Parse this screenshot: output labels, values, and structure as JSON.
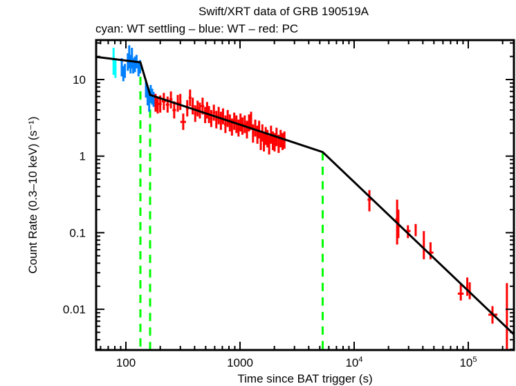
{
  "chart_data": {
    "type": "scatter",
    "title": "Swift/XRT data of GRB 190519A",
    "subtitle": "cyan: WT settling – blue: WT – red: PC",
    "xlabel": "Time since BAT trigger (s)",
    "ylabel": "Count Rate (0.3–10 keV) (s⁻¹)",
    "xscale": "log",
    "yscale": "log",
    "xlim": [
      53,
      260000
    ],
    "ylim": [
      0.0025,
      30
    ],
    "x_ticks": [
      {
        "value": 100,
        "label": "100"
      },
      {
        "value": 1000,
        "label": "1000"
      },
      {
        "value": 10000,
        "label": "10",
        "sup": "4"
      },
      {
        "value": 100000,
        "label": "10",
        "sup": "5"
      }
    ],
    "y_ticks": [
      {
        "value": 10,
        "label": "10"
      },
      {
        "value": 1,
        "label": "1"
      },
      {
        "value": 0.1,
        "label": "0.1"
      },
      {
        "value": 0.01,
        "label": "0.01"
      }
    ],
    "grid": false,
    "colors": {
      "wt_settling": "#00ffff",
      "wt": "#0080ff",
      "pc": "#ff0000",
      "fit": "#000000",
      "breaks": "#00ff00"
    },
    "series": [
      {
        "name": "WT settling",
        "color_key": "wt_settling",
        "points": [
          {
            "t": 78,
            "t_lo": 76,
            "t_hi": 80,
            "rate": 18.0,
            "r_lo": 11.5,
            "r_hi": 26.0
          },
          {
            "t": 81,
            "t_lo": 79,
            "t_hi": 83,
            "rate": 14.0,
            "r_lo": 10.5,
            "r_hi": 19.0
          }
        ]
      },
      {
        "name": "WT",
        "color_key": "wt",
        "points": [
          {
            "t": 92,
            "t_lo": 90,
            "t_hi": 94,
            "rate": 14.5,
            "r_lo": 11.0,
            "r_hi": 19.0
          },
          {
            "t": 95,
            "t_lo": 93,
            "t_hi": 97,
            "rate": 12.0,
            "r_lo": 9.5,
            "r_hi": 15.0
          },
          {
            "t": 98,
            "t_lo": 96,
            "t_hi": 100,
            "rate": 13.0,
            "r_lo": 10.5,
            "r_hi": 16.0
          },
          {
            "t": 104,
            "t_lo": 102,
            "t_hi": 106,
            "rate": 17.0,
            "r_lo": 13.0,
            "r_hi": 22.0
          },
          {
            "t": 107,
            "t_lo": 105,
            "t_hi": 109,
            "rate": 20.0,
            "r_lo": 14.0,
            "r_hi": 28.0
          },
          {
            "t": 110,
            "t_lo": 108,
            "t_hi": 112,
            "rate": 16.0,
            "r_lo": 12.0,
            "r_hi": 21.0
          },
          {
            "t": 113,
            "t_lo": 111,
            "t_hi": 115,
            "rate": 19.0,
            "r_lo": 14.0,
            "r_hi": 26.0
          },
          {
            "t": 116,
            "t_lo": 114,
            "t_hi": 118,
            "rate": 15.0,
            "r_lo": 12.0,
            "r_hi": 19.0
          },
          {
            "t": 120,
            "t_lo": 118,
            "t_hi": 122,
            "rate": 16.0,
            "r_lo": 12.5,
            "r_hi": 20.0
          },
          {
            "t": 124,
            "t_lo": 122,
            "t_hi": 126,
            "rate": 17.5,
            "r_lo": 14.0,
            "r_hi": 21.0
          },
          {
            "t": 129,
            "t_lo": 127,
            "t_hi": 131,
            "rate": 14.0,
            "r_lo": 11.0,
            "r_hi": 17.5
          },
          {
            "t": 133,
            "t_lo": 131,
            "t_hi": 135,
            "rate": 15.0,
            "r_lo": 12.0,
            "r_hi": 18.0
          },
          {
            "t": 150,
            "t_lo": 147,
            "t_hi": 153,
            "rate": 7.5,
            "r_lo": 5.8,
            "r_hi": 9.5
          },
          {
            "t": 155,
            "t_lo": 152,
            "t_hi": 158,
            "rate": 6.0,
            "r_lo": 4.6,
            "r_hi": 7.8
          },
          {
            "t": 160,
            "t_lo": 157,
            "t_hi": 163,
            "rate": 5.0,
            "r_lo": 3.8,
            "r_hi": 6.5
          },
          {
            "t": 165,
            "t_lo": 162,
            "t_hi": 168,
            "rate": 6.5,
            "r_lo": 5.0,
            "r_hi": 8.5
          },
          {
            "t": 170,
            "t_lo": 167,
            "t_hi": 173,
            "rate": 6.0,
            "r_lo": 4.7,
            "r_hi": 7.6
          },
          {
            "t": 175,
            "t_lo": 172,
            "t_hi": 178,
            "rate": 5.5,
            "r_lo": 4.4,
            "r_hi": 6.9
          }
        ]
      },
      {
        "name": "PC",
        "color_key": "pc",
        "points": [
          {
            "t": 182,
            "t_lo": 178,
            "t_hi": 186,
            "rate": 5.0,
            "r_lo": 3.8,
            "r_hi": 6.5
          },
          {
            "t": 190,
            "t_lo": 186,
            "t_hi": 194,
            "rate": 4.6,
            "r_lo": 3.6,
            "r_hi": 6.0
          },
          {
            "t": 200,
            "t_lo": 194,
            "t_hi": 206,
            "rate": 4.8,
            "r_lo": 3.7,
            "r_hi": 6.2
          },
          {
            "t": 215,
            "t_lo": 206,
            "t_hi": 224,
            "rate": 5.2,
            "r_lo": 4.0,
            "r_hi": 6.7
          },
          {
            "t": 232,
            "t_lo": 224,
            "t_hi": 240,
            "rate": 4.7,
            "r_lo": 3.7,
            "r_hi": 6.0
          },
          {
            "t": 248,
            "t_lo": 240,
            "t_hi": 256,
            "rate": 5.5,
            "r_lo": 4.2,
            "r_hi": 7.0
          },
          {
            "t": 265,
            "t_lo": 256,
            "t_hi": 275,
            "rate": 4.0,
            "r_lo": 3.1,
            "r_hi": 5.2
          },
          {
            "t": 285,
            "t_lo": 275,
            "t_hi": 295,
            "rate": 4.9,
            "r_lo": 3.8,
            "r_hi": 6.3
          },
          {
            "t": 300,
            "t_lo": 295,
            "t_hi": 306,
            "rate": 5.1,
            "r_lo": 4.0,
            "r_hi": 6.5
          },
          {
            "t": 318,
            "t_lo": 300,
            "t_hi": 336,
            "rate": 2.8,
            "r_lo": 2.2,
            "r_hi": 3.6
          },
          {
            "t": 345,
            "t_lo": 336,
            "t_hi": 355,
            "rate": 4.2,
            "r_lo": 3.3,
            "r_hi": 5.4
          },
          {
            "t": 365,
            "t_lo": 355,
            "t_hi": 375,
            "rate": 5.8,
            "r_lo": 4.5,
            "r_hi": 7.4
          },
          {
            "t": 385,
            "t_lo": 375,
            "t_hi": 395,
            "rate": 4.5,
            "r_lo": 3.5,
            "r_hi": 5.8
          },
          {
            "t": 405,
            "t_lo": 395,
            "t_hi": 415,
            "rate": 3.6,
            "r_lo": 2.8,
            "r_hi": 4.6
          },
          {
            "t": 425,
            "t_lo": 415,
            "t_hi": 435,
            "rate": 4.2,
            "r_lo": 3.3,
            "r_hi": 5.3
          },
          {
            "t": 445,
            "t_lo": 435,
            "t_hi": 455,
            "rate": 3.9,
            "r_lo": 3.1,
            "r_hi": 5.0
          },
          {
            "t": 470,
            "t_lo": 455,
            "t_hi": 485,
            "rate": 4.5,
            "r_lo": 3.5,
            "r_hi": 5.8
          },
          {
            "t": 495,
            "t_lo": 485,
            "t_hi": 505,
            "rate": 3.4,
            "r_lo": 2.7,
            "r_hi": 4.4
          },
          {
            "t": 515,
            "t_lo": 505,
            "t_hi": 525,
            "rate": 4.0,
            "r_lo": 3.1,
            "r_hi": 5.1
          },
          {
            "t": 535,
            "t_lo": 525,
            "t_hi": 545,
            "rate": 3.5,
            "r_lo": 2.7,
            "r_hi": 4.5
          },
          {
            "t": 560,
            "t_lo": 545,
            "t_hi": 575,
            "rate": 3.1,
            "r_lo": 2.4,
            "r_hi": 4.0
          },
          {
            "t": 590,
            "t_lo": 575,
            "t_hi": 605,
            "rate": 3.7,
            "r_lo": 2.9,
            "r_hi": 4.7
          },
          {
            "t": 620,
            "t_lo": 605,
            "t_hi": 635,
            "rate": 3.0,
            "r_lo": 2.3,
            "r_hi": 3.9
          },
          {
            "t": 650,
            "t_lo": 635,
            "t_hi": 665,
            "rate": 3.4,
            "r_lo": 2.6,
            "r_hi": 4.4
          },
          {
            "t": 680,
            "t_lo": 665,
            "t_hi": 695,
            "rate": 2.9,
            "r_lo": 2.2,
            "r_hi": 3.8
          },
          {
            "t": 710,
            "t_lo": 695,
            "t_hi": 725,
            "rate": 3.3,
            "r_lo": 2.6,
            "r_hi": 4.2
          },
          {
            "t": 745,
            "t_lo": 725,
            "t_hi": 765,
            "rate": 2.6,
            "r_lo": 2.0,
            "r_hi": 3.4
          },
          {
            "t": 780,
            "t_lo": 765,
            "t_hi": 795,
            "rate": 3.1,
            "r_lo": 2.4,
            "r_hi": 4.0
          },
          {
            "t": 815,
            "t_lo": 795,
            "t_hi": 835,
            "rate": 2.7,
            "r_lo": 2.1,
            "r_hi": 3.5
          },
          {
            "t": 850,
            "t_lo": 835,
            "t_hi": 865,
            "rate": 2.4,
            "r_lo": 1.85,
            "r_hi": 3.1
          },
          {
            "t": 890,
            "t_lo": 865,
            "t_hi": 915,
            "rate": 2.9,
            "r_lo": 2.2,
            "r_hi": 3.7
          },
          {
            "t": 930,
            "t_lo": 915,
            "t_hi": 945,
            "rate": 2.6,
            "r_lo": 2.0,
            "r_hi": 3.4
          },
          {
            "t": 970,
            "t_lo": 945,
            "t_hi": 995,
            "rate": 2.3,
            "r_lo": 1.8,
            "r_hi": 3.0
          },
          {
            "t": 1010,
            "t_lo": 995,
            "t_hi": 1025,
            "rate": 2.8,
            "r_lo": 2.1,
            "r_hi": 3.6
          },
          {
            "t": 1050,
            "t_lo": 1025,
            "t_hi": 1075,
            "rate": 2.5,
            "r_lo": 1.9,
            "r_hi": 3.2
          },
          {
            "t": 1100,
            "t_lo": 1075,
            "t_hi": 1125,
            "rate": 2.6,
            "r_lo": 2.0,
            "r_hi": 3.4
          },
          {
            "t": 1150,
            "t_lo": 1125,
            "t_hi": 1175,
            "rate": 2.2,
            "r_lo": 1.7,
            "r_hi": 2.9
          },
          {
            "t": 1200,
            "t_lo": 1175,
            "t_hi": 1225,
            "rate": 2.7,
            "r_lo": 2.1,
            "r_hi": 3.5
          },
          {
            "t": 1250,
            "t_lo": 1225,
            "t_hi": 1275,
            "rate": 2.9,
            "r_lo": 2.2,
            "r_hi": 3.8
          },
          {
            "t": 1300,
            "t_lo": 1275,
            "t_hi": 1325,
            "rate": 2.0,
            "r_lo": 1.5,
            "r_hi": 2.6
          },
          {
            "t": 1360,
            "t_lo": 1325,
            "t_hi": 1395,
            "rate": 2.3,
            "r_lo": 1.8,
            "r_hi": 3.0
          },
          {
            "t": 1420,
            "t_lo": 1395,
            "t_hi": 1445,
            "rate": 1.9,
            "r_lo": 1.45,
            "r_hi": 2.5
          },
          {
            "t": 1470,
            "t_lo": 1445,
            "t_hi": 1495,
            "rate": 2.2,
            "r_lo": 1.7,
            "r_hi": 2.9
          },
          {
            "t": 1520,
            "t_lo": 1495,
            "t_hi": 1545,
            "rate": 1.6,
            "r_lo": 1.2,
            "r_hi": 2.1
          },
          {
            "t": 1570,
            "t_lo": 1545,
            "t_hi": 1595,
            "rate": 2.0,
            "r_lo": 1.55,
            "r_hi": 2.6
          },
          {
            "t": 1620,
            "t_lo": 1595,
            "t_hi": 1645,
            "rate": 1.5,
            "r_lo": 1.15,
            "r_hi": 2.0
          },
          {
            "t": 1680,
            "t_lo": 1645,
            "t_hi": 1715,
            "rate": 1.8,
            "r_lo": 1.4,
            "r_hi": 2.4
          },
          {
            "t": 1740,
            "t_lo": 1715,
            "t_hi": 1765,
            "rate": 1.7,
            "r_lo": 1.3,
            "r_hi": 2.2
          },
          {
            "t": 1800,
            "t_lo": 1765,
            "t_hi": 1835,
            "rate": 1.4,
            "r_lo": 1.05,
            "r_hi": 1.85
          },
          {
            "t": 1870,
            "t_lo": 1835,
            "t_hi": 1905,
            "rate": 1.9,
            "r_lo": 1.45,
            "r_hi": 2.5
          },
          {
            "t": 1940,
            "t_lo": 1905,
            "t_hi": 1975,
            "rate": 1.6,
            "r_lo": 1.2,
            "r_hi": 2.1
          },
          {
            "t": 2010,
            "t_lo": 1975,
            "t_hi": 2045,
            "rate": 1.5,
            "r_lo": 1.15,
            "r_hi": 2.0
          },
          {
            "t": 2090,
            "t_lo": 2045,
            "t_hi": 2135,
            "rate": 1.8,
            "r_lo": 1.35,
            "r_hi": 2.35
          },
          {
            "t": 2180,
            "t_lo": 2135,
            "t_hi": 2225,
            "rate": 1.45,
            "r_lo": 1.1,
            "r_hi": 1.9
          },
          {
            "t": 2270,
            "t_lo": 2225,
            "t_hi": 2315,
            "rate": 1.7,
            "r_lo": 1.3,
            "r_hi": 2.2
          },
          {
            "t": 2360,
            "t_lo": 2315,
            "t_hi": 2405,
            "rate": 1.55,
            "r_lo": 1.2,
            "r_hi": 2.0
          },
          {
            "t": 2450,
            "t_lo": 2405,
            "t_hi": 2500,
            "rate": 1.6,
            "r_lo": 1.25,
            "r_hi": 2.1
          },
          {
            "t": 13600,
            "t_lo": 13100,
            "t_hi": 14100,
            "rate": 0.27,
            "r_lo": 0.19,
            "r_hi": 0.36
          },
          {
            "t": 23800,
            "t_lo": 23000,
            "t_hi": 24600,
            "rate": 0.15,
            "r_lo": 0.07,
            "r_hi": 0.27
          },
          {
            "t": 24400,
            "t_lo": 23800,
            "t_hi": 25000,
            "rate": 0.12,
            "r_lo": 0.085,
            "r_hi": 0.2
          },
          {
            "t": 29600,
            "t_lo": 28000,
            "t_hi": 31200,
            "rate": 0.105,
            "r_lo": 0.085,
            "r_hi": 0.125
          },
          {
            "t": 34600,
            "t_lo": 34000,
            "t_hi": 35200,
            "rate": 0.11,
            "r_lo": 0.09,
            "r_hi": 0.13
          },
          {
            "t": 40800,
            "t_lo": 40200,
            "t_hi": 41400,
            "rate": 0.07,
            "r_lo": 0.045,
            "r_hi": 0.105
          },
          {
            "t": 46700,
            "t_lo": 44000,
            "t_hi": 49500,
            "rate": 0.055,
            "r_lo": 0.045,
            "r_hi": 0.075
          },
          {
            "t": 86000,
            "t_lo": 81000,
            "t_hi": 91000,
            "rate": 0.016,
            "r_lo": 0.013,
            "r_hi": 0.021
          },
          {
            "t": 98000,
            "t_lo": 96000,
            "t_hi": 100000,
            "rate": 0.02,
            "r_lo": 0.015,
            "r_hi": 0.026
          },
          {
            "t": 103000,
            "t_lo": 101000,
            "t_hi": 105000,
            "rate": 0.018,
            "r_lo": 0.0135,
            "r_hi": 0.0225
          },
          {
            "t": 163000,
            "t_lo": 150000,
            "t_hi": 180000,
            "rate": 0.0085,
            "r_lo": 0.0065,
            "r_hi": 0.011
          },
          {
            "t": 218000,
            "t_lo": 214000,
            "t_hi": 222000,
            "rate": 0.0068,
            "r_lo": 0.003,
            "r_hi": 0.022
          }
        ]
      }
    ],
    "fit": {
      "name": "broken power-law model",
      "color_key": "fit",
      "points": [
        {
          "t": 55,
          "rate": 19.8
        },
        {
          "t": 134,
          "rate": 16.8
        },
        {
          "t": 163,
          "rate": 6.3
        },
        {
          "t": 5300,
          "rate": 1.13
        },
        {
          "t": 260000,
          "rate": 0.0047
        }
      ]
    },
    "breaks": {
      "color_key": "breaks",
      "style": "dashed",
      "times": [
        134,
        163,
        5300
      ]
    }
  }
}
